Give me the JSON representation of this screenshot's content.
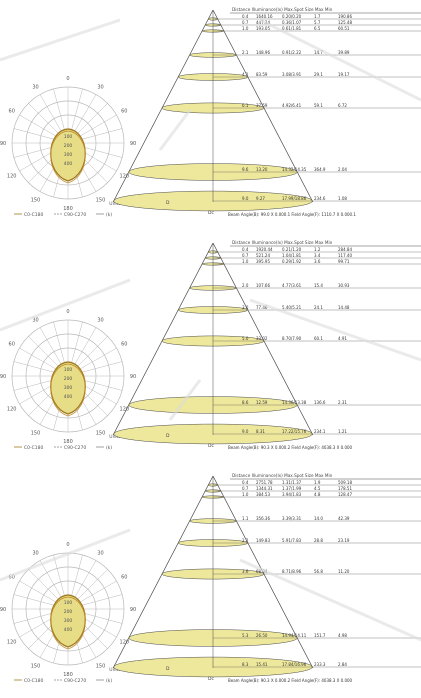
{
  "panels": [
    {
      "id": "panel-1",
      "cone_header": "Distance  Illuminance(lx)  Max.Spot Size  Max  Min",
      "cone_rows": [
        {
          "d": "0.4",
          "a": "1640.16",
          "b": "0.20/0.20",
          "c": "1.7",
          "e": "190.86"
        },
        {
          "d": "0.7",
          "a": "447.34",
          "b": "0.36/1.07",
          "c": "5.7",
          "e": "125.48"
        },
        {
          "d": "1.0",
          "a": "193.05",
          "b": "0.61/1.81",
          "c": "6.5",
          "e": "60.51"
        },
        {
          "d": "2.1",
          "a": "148.96",
          "b": "0.91/2.22",
          "c": "14.7",
          "e": "39.89"
        },
        {
          "d": "4.1",
          "a": "83.59",
          "b": "3.08/3.91",
          "c": "29.1",
          "e": "19.17"
        },
        {
          "d": "6.1",
          "a": "37.59",
          "b": "4.92/6.41",
          "c": "59.1",
          "e": "6.72"
        },
        {
          "d": "9.6",
          "a": "13.20",
          "b": "14.32/14.35",
          "c": "364.9",
          "e": "2.04"
        },
        {
          "d": "9.0",
          "a": "9.27",
          "b": "17.99/18.86",
          "c": "234.6",
          "e": "1.08"
        }
      ],
      "cone_footer": "Beam Angle(B): 99.0 X 0.000.1  Field Angle(F): 1110.7 X 0.000.1",
      "polar_legend": [
        "C0-C180",
        "C90-C270",
        "(k)"
      ],
      "polar_unit": "Unit: cd"
    },
    {
      "id": "panel-2",
      "cone_header": "Distance  Illuminance(lx)  Max.Spot Size  Max  Min",
      "cone_rows": [
        {
          "d": "0.4",
          "a": "1920.44",
          "b": "0.21/1.20",
          "c": "1.2",
          "e": "284.84"
        },
        {
          "d": "0.7",
          "a": "521.24",
          "b": "1.04/1.81",
          "c": "3.4",
          "e": "117.40"
        },
        {
          "d": "1.0",
          "a": "395.95",
          "b": "0.29/1.92",
          "c": "3.6",
          "e": "99.71"
        },
        {
          "d": "2.0",
          "a": "107.66",
          "b": "4.77/3.61",
          "c": "15.4",
          "e": "30.93"
        },
        {
          "d": "3.0",
          "a": "77.46",
          "b": "5.40/5.21",
          "c": "24.1",
          "e": "14.48"
        },
        {
          "d": "5.0",
          "a": "33.02",
          "b": "8.70/7.90",
          "c": "60.1",
          "e": "4.91"
        },
        {
          "d": "8.6",
          "a": "12.59",
          "b": "14.36/13.38",
          "c": "136.6",
          "e": "2.31"
        },
        {
          "d": "9.0",
          "a": "8.31",
          "b": "17.22/15.76",
          "c": "234.1",
          "e": "1.21"
        }
      ],
      "cone_footer": "Beam Angle(B): 90.3 X 0.000.2  Field Angle(F): 4038.3 X 0.000",
      "polar_legend": [
        "C0-C180",
        "C90-C270",
        "(k)"
      ],
      "polar_unit": "Unit: cd"
    },
    {
      "id": "panel-3",
      "cone_header": "Distance  Illuminance(lx)  Max.Spot Size  Max  Min",
      "cone_rows": [
        {
          "d": "0.4",
          "a": "2751.78",
          "b": "1.31/1.37",
          "c": "1.9",
          "e": "509.18"
        },
        {
          "d": "0.7",
          "a": "1344.31",
          "b": "1.37/1.99",
          "c": "4.5",
          "e": "178.51"
        },
        {
          "d": "1.0",
          "a": "384.53",
          "b": "3.94/1.83",
          "c": "4.8",
          "e": "128.47"
        },
        {
          "d": "1.1",
          "a": "356.36",
          "b": "3.39/3.31",
          "c": "14.0",
          "e": "42.39"
        },
        {
          "d": "2.2",
          "a": "149.83",
          "b": "5.91/7.83",
          "c": "28.8",
          "e": "23.19"
        },
        {
          "d": "3.6",
          "a": "68.34",
          "b": "8.71/8.96",
          "c": "56.8",
          "e": "11.20"
        },
        {
          "d": "5.3",
          "a": "26.50",
          "b": "14.94/14.11",
          "c": "151.7",
          "e": "4.98"
        },
        {
          "d": "8.3",
          "a": "15.41",
          "b": "17.84/16.96",
          "c": "233.3",
          "e": "2.84"
        }
      ],
      "cone_footer": "Beam Angle(B): 90.3 X 0.000.2  Field Angle(F): 4038.3 X 0.000",
      "polar_legend": [
        "C0-C180",
        "C90-C270",
        "(k)"
      ],
      "polar_unit": "Unit: cd"
    }
  ],
  "polar_angle_labels": [
    "180",
    "150",
    "120",
    "90",
    "60",
    "30",
    "0",
    "30",
    "60",
    "90",
    "120",
    "150"
  ],
  "polar_ring_labels": [
    "100",
    "200",
    "300",
    "400"
  ],
  "cone_apex_label": "D",
  "cone_side_label": "Dc",
  "colors": {
    "fill": "#eee89c",
    "polar_fill": "#e6dd86",
    "polar_line": "#a07a20",
    "line": "#4a4a4a",
    "grid": "#b8b8b8"
  }
}
